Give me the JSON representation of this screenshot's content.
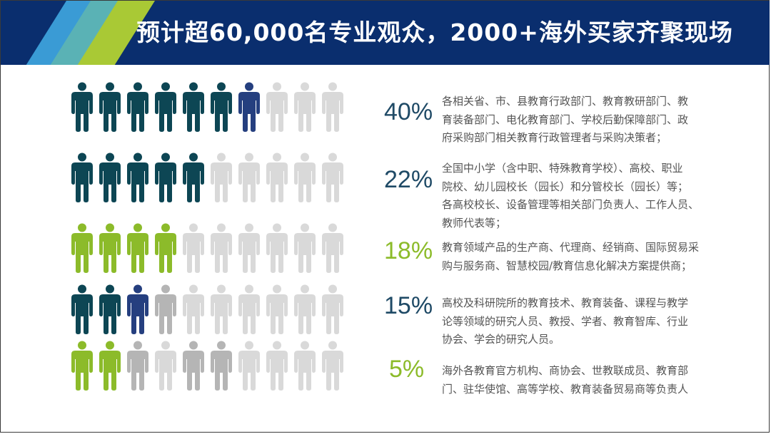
{
  "header": {
    "title": "预计超60,000名专业观众，2000+海外买家齐聚现场",
    "background_color": "#0a2e6e",
    "stripe_colors": [
      "#3a9bd5",
      "#5ab2b5",
      "#a9c935"
    ]
  },
  "colors": {
    "dark_teal": "#0d4654",
    "navy": "#253f7f",
    "green": "#8cbb2a",
    "light_gray": "#d9d9d9",
    "mid_gray": "#b5b5b5"
  },
  "icon_grid": {
    "icon": "person-icon",
    "rows": [
      [
        "dark_teal",
        "dark_teal",
        "dark_teal",
        "dark_teal",
        "dark_teal",
        "dark_teal",
        "navy",
        "light_gray",
        "light_gray",
        "light_gray"
      ],
      [
        "dark_teal",
        "dark_teal",
        "dark_teal",
        "dark_teal",
        "dark_teal",
        "light_gray",
        "light_gray",
        "light_gray",
        "light_gray",
        "light_gray"
      ],
      [
        "green",
        "green",
        "green",
        "green",
        "light_gray",
        "light_gray",
        "light_gray",
        "light_gray",
        "light_gray",
        "light_gray"
      ],
      [
        "dark_teal",
        "dark_teal",
        "navy",
        "mid_gray",
        "light_gray",
        "light_gray",
        "light_gray",
        "light_gray",
        "light_gray",
        "light_gray"
      ],
      [
        "green",
        "green",
        "mid_gray",
        "light_gray",
        "mid_gray",
        "mid_gray",
        "light_gray",
        "light_gray",
        "light_gray",
        "light_gray"
      ]
    ]
  },
  "stats": [
    {
      "percent": "40%",
      "color": "#1f4a66",
      "lines": [
        "各相关省、市、县教育行政部门、教育教研部门、教",
        "育装备部门、电化教育部门、学校后勤保障部门、政",
        "府采购部门相关教育行政管理者与采购决策者；"
      ]
    },
    {
      "percent": "22%",
      "color": "#1f4a66",
      "lines": [
        "全国中小学（含中职、特殊教育学校）、高校、职业",
        "院校、幼儿园校长（园长）和分管校长（园长）等；",
        "各高校校长、设备管理等相关部门负责人、工作人员、",
        "教师代表等；"
      ]
    },
    {
      "percent": "18%",
      "color": "#8cbb2a",
      "lines": [
        "教育领域产品的生产商、代理商、经销商、国际贸易采",
        "购与服务商、智慧校园/教育信息化解决方案提供商；"
      ]
    },
    {
      "percent": "15%",
      "color": "#1f4a66",
      "lines": [
        "高校及科研院所的教育技术、教育装备、课程与教学",
        "论等领域的研究人员、教授、学者、教育智库、行业",
        "协会、学会的研究人员。"
      ]
    },
    {
      "percent": "5%",
      "color": "#8cbb2a",
      "lines": [
        "海外各教育官方机构、商协会、世教联成员、教育部",
        "门、驻华使馆、高等学校、教育装备贸易商等负责人"
      ]
    }
  ]
}
